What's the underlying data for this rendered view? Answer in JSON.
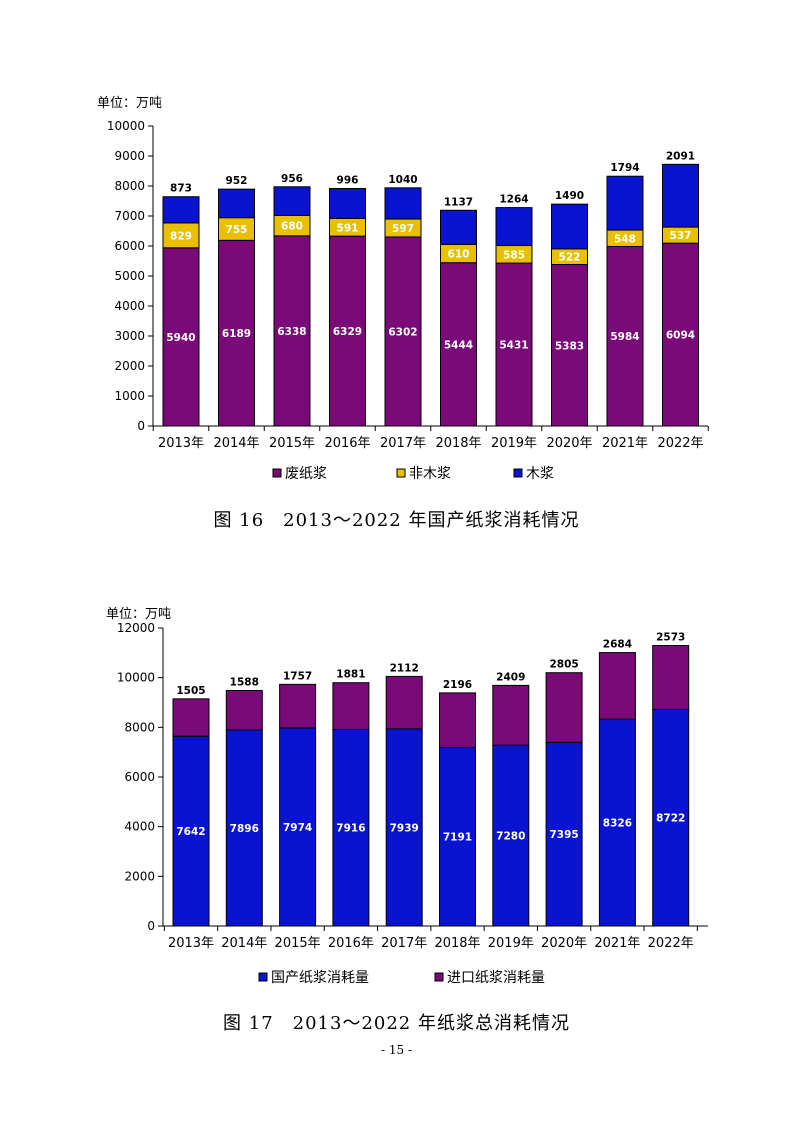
{
  "colors": {
    "waste": "#7A0A78",
    "nonwood": "#E8C000",
    "wood": "#0A14D0",
    "domestic": "#0A14D0",
    "imported": "#7A0A78"
  },
  "chart_data": [
    {
      "type": "bar",
      "stacked": true,
      "unit_label": "单位：万吨",
      "categories": [
        "2013年",
        "2014年",
        "2015年",
        "2016年",
        "2017年",
        "2018年",
        "2019年",
        "2020年",
        "2021年",
        "2022年"
      ],
      "series": [
        {
          "name": "废纸浆",
          "values": [
            5940,
            6189,
            6338,
            6329,
            6302,
            5444,
            5431,
            5383,
            5984,
            6094
          ]
        },
        {
          "name": "非木浆",
          "values": [
            829,
            755,
            680,
            591,
            597,
            610,
            585,
            522,
            548,
            537
          ]
        },
        {
          "name": "木浆",
          "values": [
            873,
            952,
            956,
            996,
            1040,
            1137,
            1264,
            1490,
            1794,
            2091
          ]
        }
      ],
      "ylim": [
        0,
        10000
      ],
      "yticks": [
        "0",
        "1000",
        "2000",
        "3000",
        "4000",
        "5000",
        "6000",
        "7000",
        "8000",
        "9000",
        "10000"
      ],
      "legend_position": "bottom",
      "grid": false,
      "caption": "图 16　2013～2022 年国产纸浆消耗情况"
    },
    {
      "type": "bar",
      "stacked": true,
      "unit_label": "单位：万吨",
      "categories": [
        "2013年",
        "2014年",
        "2015年",
        "2016年",
        "2017年",
        "2018年",
        "2019年",
        "2020年",
        "2021年",
        "2022年"
      ],
      "series": [
        {
          "name": "国产纸浆消耗量",
          "values": [
            7642,
            7896,
            7974,
            7916,
            7939,
            7191,
            7280,
            7395,
            8326,
            8722
          ]
        },
        {
          "name": "进口纸浆消耗量",
          "values": [
            1505,
            1588,
            1757,
            1881,
            2112,
            2196,
            2409,
            2805,
            2684,
            2573
          ]
        }
      ],
      "ylim": [
        0,
        12000
      ],
      "yticks": [
        "0",
        "2000",
        "4000",
        "6000",
        "8000",
        "10000",
        "12000"
      ],
      "legend_position": "bottom",
      "grid": false,
      "caption": "图 17　2013～2022 年纸浆总消耗情况"
    }
  ],
  "page_number": "- 15 -"
}
